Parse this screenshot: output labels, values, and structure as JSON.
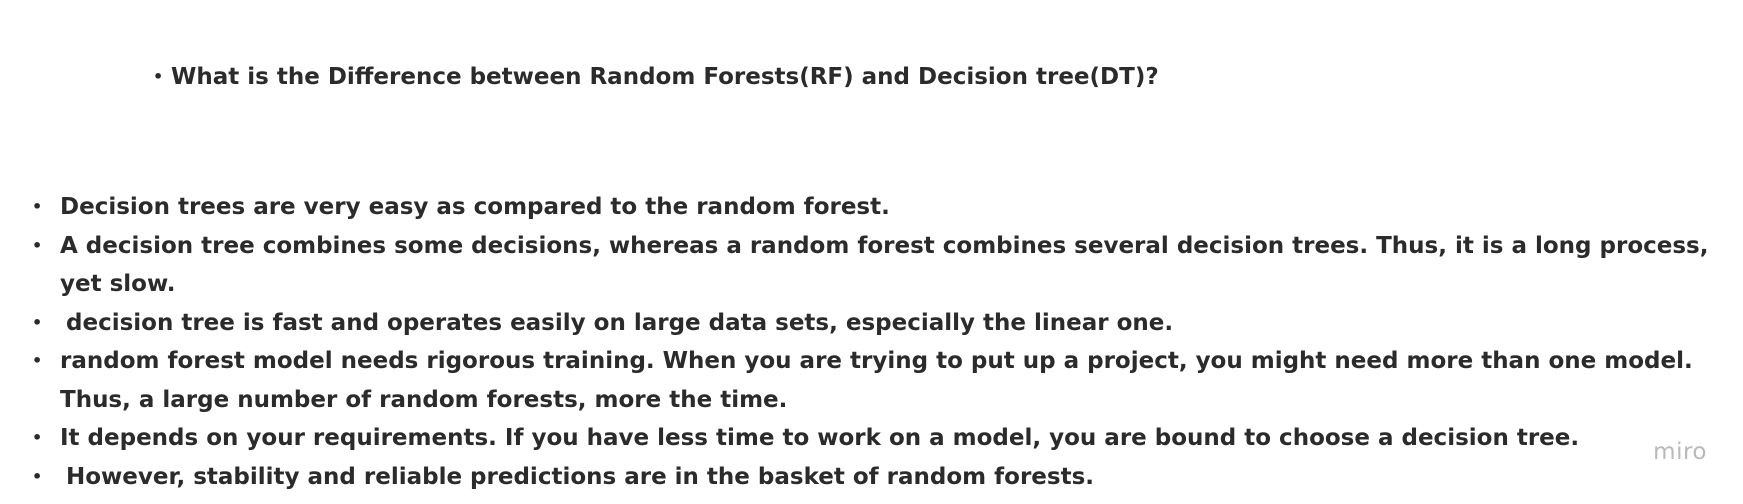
{
  "question": "What is the Difference between Random Forests(RF) and Decision tree(DT)?",
  "points": [
    "Decision trees are very easy as compared to the random forest.",
    "A decision tree combines some decisions, whereas a random forest combines several decision trees. Thus, it is a long process, yet slow.",
    "decision tree is fast and operates easily on large data sets, especially the linear one.",
    "random forest model needs rigorous training. When you are trying to put up a project, you might need more than one model. Thus, a large number of random forests, more the time.",
    "It depends on your requirements. If you have less time to work on a model, you are bound to choose a decision tree.",
    "However, stability and reliable predictions are in the basket of random forests."
  ],
  "watermark": "miro",
  "bullet_glyph": "•"
}
